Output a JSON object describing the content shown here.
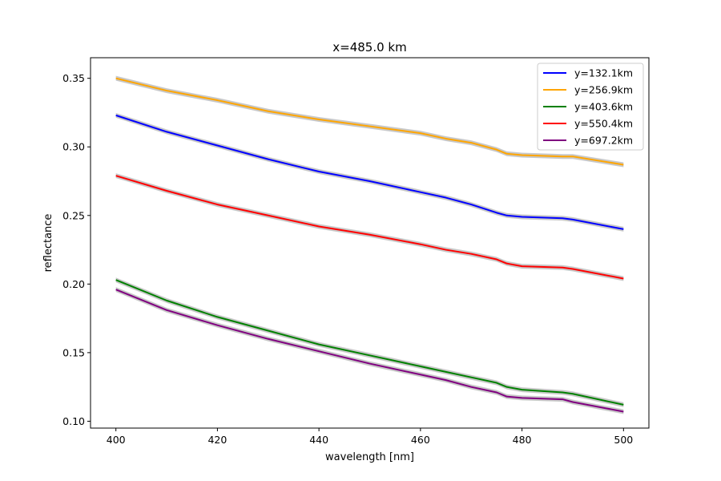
{
  "chart_data": {
    "type": "line",
    "title": "x=485.0 km",
    "xlabel": "wavelength [nm]",
    "ylabel": "reflectance",
    "xlim": [
      395,
      505
    ],
    "ylim": [
      0.095,
      0.365
    ],
    "x_ticks": [
      400,
      420,
      440,
      460,
      480,
      500
    ],
    "y_ticks": [
      0.1,
      0.15,
      0.2,
      0.25,
      0.3,
      0.35
    ],
    "x_tick_labels": [
      "400",
      "420",
      "440",
      "460",
      "480",
      "500"
    ],
    "y_tick_labels": [
      "0.10",
      "0.15",
      "0.20",
      "0.25",
      "0.30",
      "0.35"
    ],
    "grid": false,
    "legend_position": "top-right",
    "band_color": "#c8c8c8",
    "x": [
      400,
      410,
      420,
      430,
      440,
      450,
      460,
      465,
      470,
      475,
      477,
      480,
      488,
      490,
      500
    ],
    "series": [
      {
        "name": "y=132.1km",
        "color": "#0000ff",
        "values": [
          0.323,
          0.311,
          0.301,
          0.291,
          0.282,
          0.275,
          0.267,
          0.263,
          0.258,
          0.252,
          0.25,
          0.249,
          0.248,
          0.247,
          0.24
        ]
      },
      {
        "name": "y=256.9km",
        "color": "#ffa500",
        "values": [
          0.35,
          0.341,
          0.334,
          0.326,
          0.32,
          0.315,
          0.31,
          0.306,
          0.303,
          0.298,
          0.295,
          0.294,
          0.293,
          0.293,
          0.287
        ]
      },
      {
        "name": "y=403.6km",
        "color": "#008000",
        "values": [
          0.203,
          0.188,
          0.176,
          0.166,
          0.156,
          0.148,
          0.14,
          0.136,
          0.132,
          0.128,
          0.125,
          0.123,
          0.121,
          0.12,
          0.112
        ]
      },
      {
        "name": "y=550.4km",
        "color": "#ff0000",
        "values": [
          0.279,
          0.268,
          0.258,
          0.25,
          0.242,
          0.236,
          0.229,
          0.225,
          0.222,
          0.218,
          0.215,
          0.213,
          0.212,
          0.211,
          0.204
        ]
      },
      {
        "name": "y=697.2km",
        "color": "#800080",
        "values": [
          0.196,
          0.181,
          0.17,
          0.16,
          0.151,
          0.142,
          0.134,
          0.13,
          0.125,
          0.121,
          0.118,
          0.117,
          0.116,
          0.114,
          0.107
        ]
      }
    ]
  }
}
